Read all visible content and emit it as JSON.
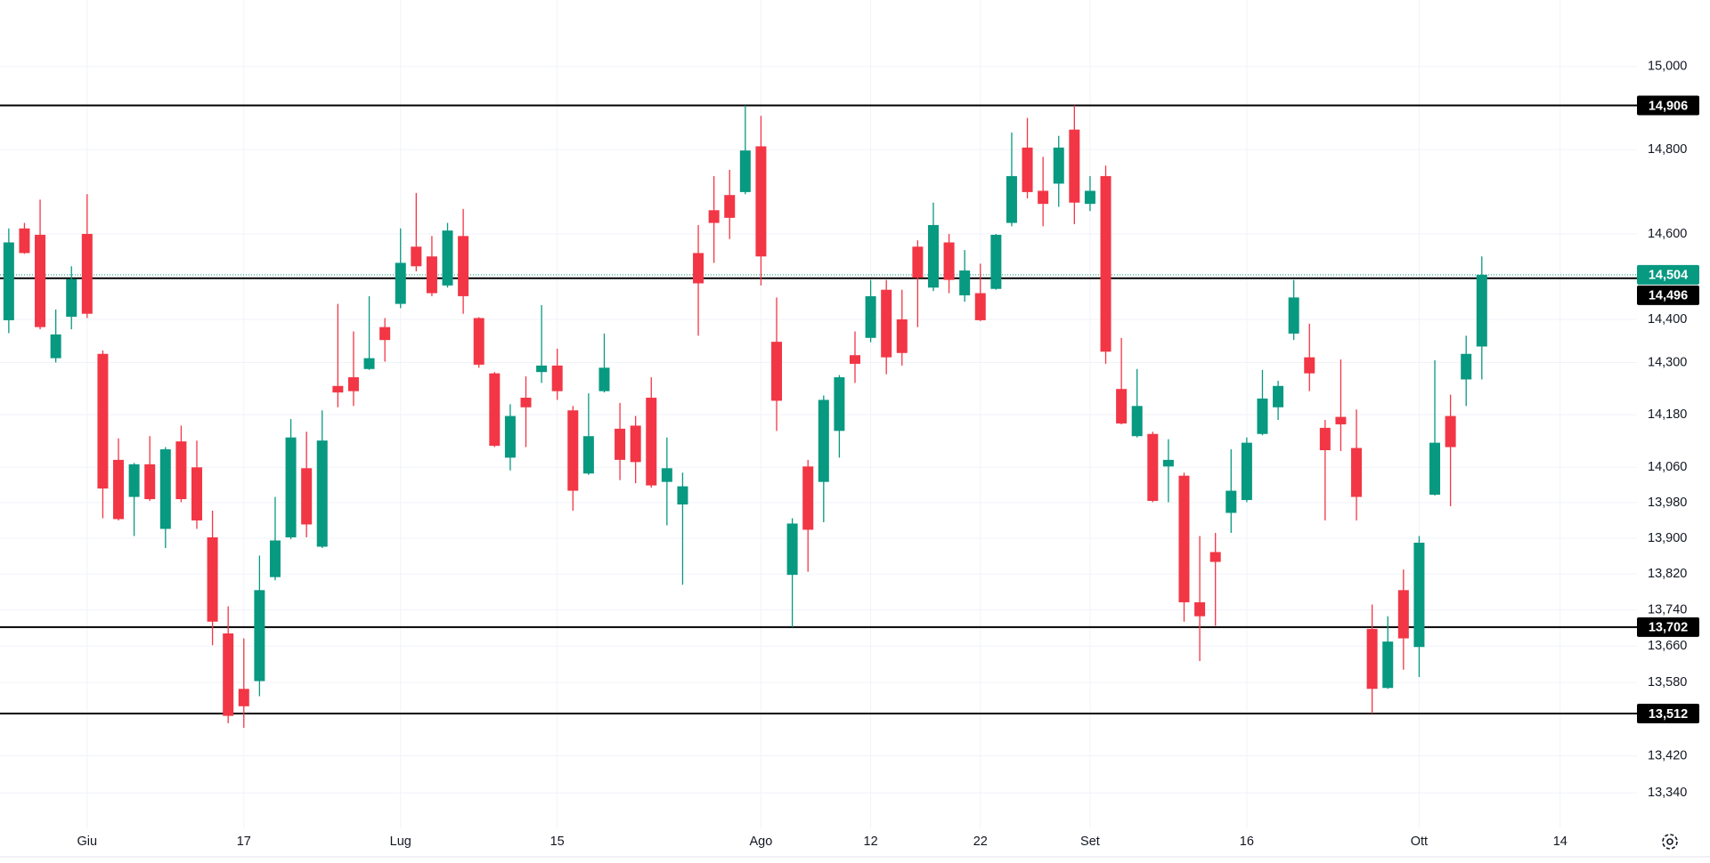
{
  "chart_data": {
    "type": "candlestick",
    "log_scale": true,
    "grid": true,
    "up_color": "#089981",
    "down_color": "#f23645",
    "level_color": "#000000",
    "xlim": [
      -0.56,
      103.9
    ],
    "ylim": [
      13264,
      15162
    ],
    "xticks": [
      {
        "value": 5,
        "label": "Giu"
      },
      {
        "value": 15,
        "label": "17"
      },
      {
        "value": 25,
        "label": "Lug"
      },
      {
        "value": 35,
        "label": "15"
      },
      {
        "value": 48,
        "label": "Ago"
      },
      {
        "value": 55,
        "label": "12"
      },
      {
        "value": 62,
        "label": "22"
      },
      {
        "value": 69,
        "label": "Set"
      },
      {
        "value": 79,
        "label": "16"
      },
      {
        "value": 90,
        "label": "Ott"
      },
      {
        "value": 99,
        "label": "14"
      }
    ],
    "yticks": [
      {
        "value": 15000,
        "label": "15,000"
      },
      {
        "value": 14800,
        "label": "14,800"
      },
      {
        "value": 14600,
        "label": "14,600"
      },
      {
        "value": 14400,
        "label": "14,400"
      },
      {
        "value": 14300,
        "label": "14,300"
      },
      {
        "value": 14180,
        "label": "14,180"
      },
      {
        "value": 14060,
        "label": "14,060"
      },
      {
        "value": 13980,
        "label": "13,980"
      },
      {
        "value": 13900,
        "label": "13,900"
      },
      {
        "value": 13820,
        "label": "13,820"
      },
      {
        "value": 13740,
        "label": "13,740"
      },
      {
        "value": 13660,
        "label": "13,660"
      },
      {
        "value": 13580,
        "label": "13,580"
      },
      {
        "value": 13420,
        "label": "13,420"
      },
      {
        "value": 13340,
        "label": "13,340"
      }
    ],
    "levels": [
      {
        "value": 14906,
        "label": "14,906"
      },
      {
        "value": 14496,
        "label": "14,496"
      },
      {
        "value": 13702,
        "label": "13,702"
      },
      {
        "value": 13512,
        "label": "13,512"
      }
    ],
    "last_price": {
      "value": 14504,
      "label": "14,504"
    },
    "open": [
      14398,
      14613,
      14598,
      14310,
      14406,
      14600,
      14320,
      14077,
      13993,
      14067,
      13921,
      14119,
      14060,
      13902,
      13688,
      13566,
      13583,
      13813,
      13902,
      14058,
      13881,
      14246,
      14266,
      14285,
      14382,
      14436,
      14570,
      14547,
      14479,
      14595,
      14403,
      14275,
      14082,
      14219,
      14278,
      14293,
      14190,
      14046,
      14234,
      14148,
      14155,
      14219,
      14027,
      13976,
      14555,
      14656,
      14692,
      14699,
      14808,
      14348,
      13818,
      14062,
      14027,
      14143,
      14317,
      14357,
      14469,
      14400,
      14570,
      14474,
      14580,
      14456,
      14461,
      14471,
      14626,
      14805,
      14702,
      14719,
      14848,
      14671,
      14737,
      14239,
      14131,
      14136,
      14062,
      14041,
      13757,
      13869,
      13957,
      13986,
      14136,
      14197,
      14367,
      14312,
      14150,
      14175,
      14104,
      13698,
      13568,
      13784,
      13658,
      13998,
      14177,
      14261,
      14337
    ],
    "high": [
      14613,
      14626,
      14681,
      14423,
      14524,
      14694,
      14328,
      14126,
      14070,
      14131,
      14106,
      14155,
      14121,
      13962,
      13748,
      13677,
      13861,
      13993,
      14170,
      14141,
      14190,
      14436,
      14372,
      14454,
      14403,
      14613,
      14697,
      14595,
      14626,
      14659,
      14405,
      14278,
      14204,
      14268,
      14433,
      14332,
      14200,
      14229,
      14367,
      14207,
      14177,
      14266,
      14128,
      14048,
      14621,
      14737,
      14752,
      14906,
      14881,
      14451,
      13945,
      14077,
      14224,
      14271,
      14372,
      14492,
      14492,
      14469,
      14585,
      14674,
      14600,
      14562,
      14530,
      14600,
      14841,
      14876,
      14783,
      14833,
      14906,
      14737,
      14762,
      14357,
      14285,
      14141,
      14124,
      14048,
      13905,
      13912,
      14101,
      14128,
      14283,
      14258,
      14492,
      14390,
      14168,
      14307,
      14192,
      13752,
      13726,
      13830,
      13905,
      14305,
      14226,
      14362,
      14547
    ],
    "low": [
      14368,
      14553,
      14377,
      14300,
      14377,
      14403,
      13945,
      13940,
      13905,
      13984,
      13878,
      13981,
      13921,
      13662,
      13491,
      13481,
      13550,
      13806,
      13898,
      13902,
      13878,
      14197,
      14200,
      14283,
      14302,
      14426,
      14512,
      14454,
      14474,
      14413,
      14288,
      14106,
      14053,
      14106,
      14253,
      14214,
      13962,
      14043,
      14231,
      14031,
      14024,
      14014,
      13929,
      13796,
      14362,
      14532,
      14588,
      14694,
      14479,
      14143,
      13702,
      13825,
      13936,
      14082,
      14253,
      14347,
      14273,
      14293,
      14382,
      14466,
      14461,
      14441,
      14396,
      14469,
      14618,
      14684,
      14618,
      14664,
      14623,
      14654,
      14297,
      14158,
      14128,
      13981,
      13981,
      13714,
      13627,
      13705,
      13912,
      13981,
      14133,
      14168,
      14352,
      14234,
      13940,
      14097,
      13940,
      13512,
      13566,
      13608,
      13592,
      13996,
      13972,
      14200,
      14261
    ],
    "close": [
      14580,
      14555,
      14382,
      14365,
      14494,
      14413,
      14012,
      13943,
      14067,
      13988,
      14101,
      13988,
      13940,
      13714,
      13507,
      13528,
      13784,
      13895,
      14128,
      13931,
      14121,
      14231,
      14234,
      14310,
      14352,
      14532,
      14524,
      14461,
      14608,
      14454,
      14295,
      14109,
      14177,
      14197,
      14293,
      14234,
      14007,
      14131,
      14288,
      14077,
      14072,
      14019,
      14058,
      14017,
      14484,
      14626,
      14638,
      14798,
      14547,
      14212,
      13933,
      13919,
      14214,
      14266,
      14297,
      14454,
      14312,
      14322,
      14497,
      14621,
      14492,
      14514,
      14398,
      14598,
      14737,
      14699,
      14671,
      14805,
      14674,
      14702,
      14325,
      14160,
      14200,
      13984,
      14077,
      13757,
      13726,
      13847,
      14007,
      14116,
      14217,
      14246,
      14451,
      14275,
      14099,
      14158,
      13993,
      13566,
      13670,
      13677,
      13890,
      14116,
      14106,
      14320,
      14504
    ]
  }
}
